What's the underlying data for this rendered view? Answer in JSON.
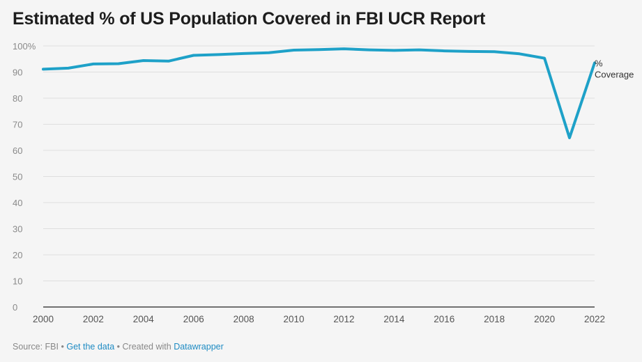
{
  "title": "Estimated % of US Population Covered in FBI UCR Report",
  "footer": {
    "source": "Source: FBI",
    "separator": "•",
    "get_data_link": "Get the data",
    "created_with": "Created with",
    "tool_link": "Datawrapper"
  },
  "chart_data": {
    "type": "line",
    "title": "Estimated % of US Population Covered in FBI UCR Report",
    "xlabel": "",
    "ylabel": "",
    "ylim": [
      0,
      100
    ],
    "xlim": [
      2000,
      2022
    ],
    "grid": true,
    "x_ticks": [
      "2000",
      "2002",
      "2004",
      "2006",
      "2008",
      "2010",
      "2012",
      "2014",
      "2016",
      "2018",
      "2020",
      "2022"
    ],
    "y_ticks": [
      "0",
      "10",
      "20",
      "30",
      "40",
      "50",
      "60",
      "70",
      "80",
      "90",
      "100%"
    ],
    "series": [
      {
        "name": "% Coverage",
        "label_lines": [
          "%",
          "Coverage"
        ],
        "color": "#1ea1c8",
        "x": [
          2000,
          2001,
          2002,
          2003,
          2004,
          2005,
          2006,
          2007,
          2008,
          2009,
          2010,
          2011,
          2012,
          2013,
          2014,
          2015,
          2016,
          2017,
          2018,
          2019,
          2020,
          2021,
          2022
        ],
        "values": [
          91.1,
          91.5,
          93.1,
          93.2,
          94.4,
          94.2,
          96.4,
          96.7,
          97.1,
          97.4,
          98.4,
          98.6,
          98.9,
          98.5,
          98.3,
          98.5,
          98.1,
          97.9,
          97.8,
          97.0,
          95.3,
          64.8,
          93.5
        ]
      }
    ]
  }
}
